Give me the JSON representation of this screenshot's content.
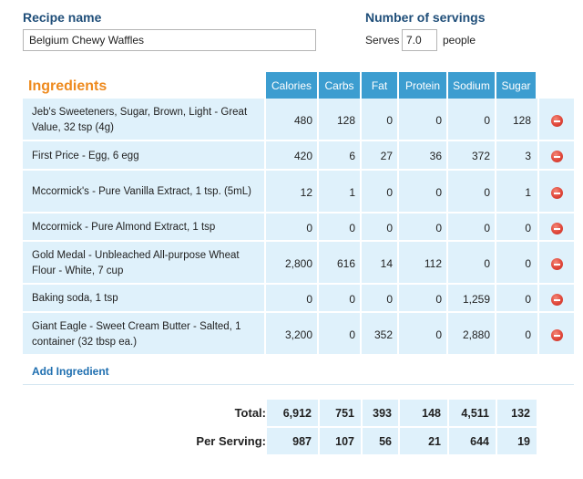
{
  "recipe": {
    "label": "Recipe name",
    "name": "Belgium Chewy Waffles"
  },
  "servings": {
    "label": "Number of servings",
    "serves_text": "Serves",
    "value": "7.0",
    "people_text": "people"
  },
  "ingredients_title": "Ingredients",
  "columns": [
    "Calories",
    "Carbs",
    "Fat",
    "Protein",
    "Sodium",
    "Sugar"
  ],
  "ingredients": [
    {
      "name": "Jeb's Sweeteners, Sugar, Brown, Light - Great Value, 32 tsp (4g)",
      "values": [
        "480",
        "128",
        "0",
        "0",
        "0",
        "128"
      ]
    },
    {
      "name": "First Price - Egg, 6 egg",
      "values": [
        "420",
        "6",
        "27",
        "36",
        "372",
        "3"
      ]
    },
    {
      "name": "Mccormick's - Pure Vanilla Extract, 1 tsp. (5mL)",
      "values": [
        "12",
        "1",
        "0",
        "0",
        "0",
        "1"
      ]
    },
    {
      "name": "Mccormick - Pure Almond Extract, 1 tsp",
      "values": [
        "0",
        "0",
        "0",
        "0",
        "0",
        "0"
      ]
    },
    {
      "name": "Gold Medal - Unbleached All-purpose Wheat Flour - White, 7 cup",
      "values": [
        "2,800",
        "616",
        "14",
        "112",
        "0",
        "0"
      ]
    },
    {
      "name": "Baking soda, 1 tsp",
      "values": [
        "0",
        "0",
        "0",
        "0",
        "1,259",
        "0"
      ]
    },
    {
      "name": "Giant Eagle - Sweet Cream Butter - Salted, 1 container (32 tbsp ea.)",
      "values": [
        "3,200",
        "0",
        "352",
        "0",
        "2,880",
        "0"
      ]
    }
  ],
  "add_ingredient_label": "Add Ingredient",
  "totals": {
    "label": "Total:",
    "values": [
      "6,912",
      "751",
      "393",
      "148",
      "4,511",
      "132"
    ]
  },
  "per_serving": {
    "label": "Per Serving:",
    "values": [
      "987",
      "107",
      "56",
      "21",
      "644",
      "19"
    ]
  },
  "colors": {
    "header_bg": "#3c9dd0",
    "row_bg": "#dff1fb",
    "title_orange": "#ee8a1e",
    "label_blue": "#1f4e79",
    "delete_red": "#e0473a"
  }
}
